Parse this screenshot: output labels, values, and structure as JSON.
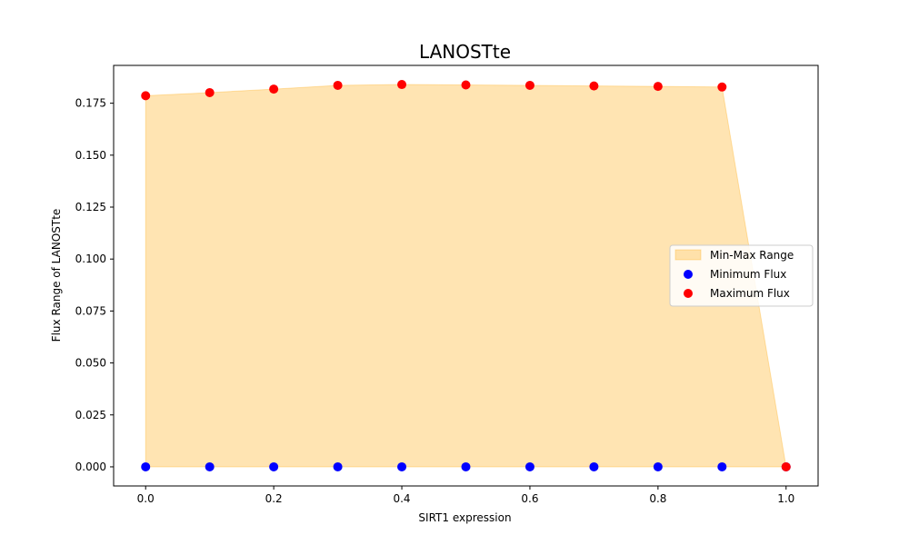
{
  "chart_data": {
    "type": "scatter",
    "title": "LANOSTte",
    "xlabel": "SIRT1 expression",
    "ylabel": "Flux Range of LANOSTte",
    "x": [
      0.0,
      0.1,
      0.2,
      0.3,
      0.4,
      0.5,
      0.6,
      0.7,
      0.8,
      0.9,
      1.0
    ],
    "series": [
      {
        "name": "Minimum Flux",
        "color": "#0000ff",
        "values": [
          0,
          0,
          0,
          0,
          0,
          0,
          0,
          0,
          0,
          0,
          0
        ]
      },
      {
        "name": "Maximum Flux",
        "color": "#ff0000",
        "values": [
          0.1786,
          0.1801,
          0.1818,
          0.1836,
          0.184,
          0.1838,
          0.1836,
          0.1833,
          0.1831,
          0.1828,
          0
        ]
      }
    ],
    "fill": {
      "name": "Min-Max Range",
      "color": "#ffa500",
      "alpha": 0.3
    },
    "xlim": [
      -0.05,
      1.05
    ],
    "ylim": [
      -0.0092,
      0.1932
    ],
    "xticks": [
      0.0,
      0.2,
      0.4,
      0.6,
      0.8,
      1.0
    ],
    "xtick_labels": [
      "0.0",
      "0.2",
      "0.4",
      "0.6",
      "0.8",
      "1.0"
    ],
    "yticks": [
      0,
      0.025,
      0.05,
      0.075,
      0.1,
      0.125,
      0.15,
      0.175
    ],
    "ytick_labels": [
      "0.000",
      "0.025",
      "0.050",
      "0.075",
      "0.100",
      "0.125",
      "0.150",
      "0.175"
    ],
    "grid": false,
    "legend_position": "center-right"
  }
}
